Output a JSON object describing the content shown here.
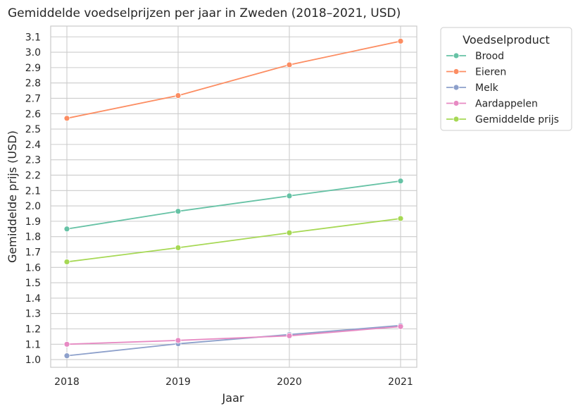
{
  "chart_data": {
    "type": "line",
    "title": "Gemiddelde voedselprijzen per jaar in Zweden (2018–2021, USD)",
    "xlabel": "Jaar",
    "ylabel": "Gemiddelde prijs (USD)",
    "x": [
      "2018",
      "2019",
      "2020",
      "2021"
    ],
    "ylim": [
      0.95,
      3.17
    ],
    "yticks": [
      "1.0",
      "1.1",
      "1.2",
      "1.3",
      "1.4",
      "1.5",
      "1.6",
      "1.7",
      "1.8",
      "1.9",
      "2.0",
      "2.1",
      "2.2",
      "2.3",
      "2.4",
      "2.5",
      "2.6",
      "2.7",
      "2.8",
      "2.9",
      "3.0",
      "3.1"
    ],
    "grid": true,
    "legend": {
      "title": "Voedselproduct",
      "placement": "outside-upper-right"
    },
    "series": [
      {
        "name": "Brood",
        "color": "#66c2a5",
        "values": [
          1.85,
          1.965,
          2.065,
          2.162
        ]
      },
      {
        "name": "Eieren",
        "color": "#fc8d62",
        "values": [
          2.57,
          2.718,
          2.918,
          3.072
        ]
      },
      {
        "name": "Melk",
        "color": "#8da0cb",
        "values": [
          1.025,
          1.103,
          1.163,
          1.222
        ]
      },
      {
        "name": "Aardappelen",
        "color": "#e78ac3",
        "values": [
          1.1,
          1.125,
          1.155,
          1.215
        ]
      },
      {
        "name": "Gemiddelde prijs",
        "color": "#a6d854",
        "values": [
          1.636,
          1.728,
          1.825,
          1.918
        ]
      }
    ]
  }
}
